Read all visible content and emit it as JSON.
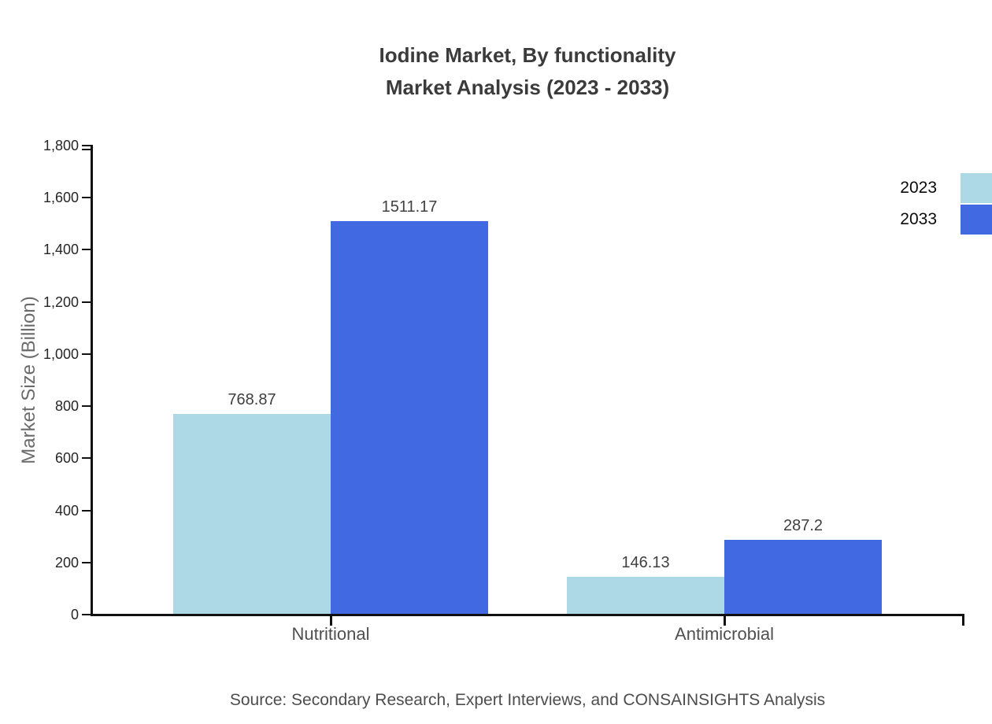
{
  "title": {
    "line1": "Iodine Market, By functionality",
    "line2": "Market Analysis (2023 - 2033)"
  },
  "source": "Source: Secondary Research, Expert Interviews, and CONSAINSIGHTS Analysis",
  "legend": {
    "items": [
      {
        "label": "2023",
        "color": "#ADD8E6"
      },
      {
        "label": "2033",
        "color": "#4169E1"
      }
    ]
  },
  "chart_data": {
    "type": "bar",
    "title": "Iodine Market, By functionality Market Analysis (2023 - 2033)",
    "categories": [
      "Nutritional",
      "Antimicrobial"
    ],
    "series": [
      {
        "name": "2023",
        "color": "#ADD8E6",
        "values": [
          768.87,
          146.13
        ],
        "labels": [
          "768.87",
          "146.13"
        ]
      },
      {
        "name": "2033",
        "color": "#4169E1",
        "values": [
          1511.17,
          287.2
        ],
        "labels": [
          "1511.17",
          "287.2"
        ]
      }
    ],
    "xlabel": "",
    "ylabel": "Market Size (Billion)",
    "ylim": [
      0,
      1800
    ],
    "ytick_step": 200,
    "ytick_format": "thousands-comma",
    "grid": false,
    "legend_position": "top-right",
    "background": "#ffffff",
    "axis_color": "#111111"
  }
}
